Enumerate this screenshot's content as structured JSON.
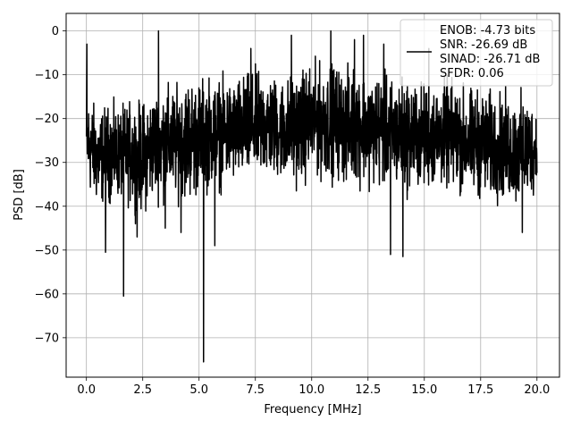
{
  "chart_data": {
    "type": "line",
    "title": "",
    "xlabel": "Frequency [MHz]",
    "ylabel": "PSD [dB]",
    "xlim": [
      -0.9,
      21.0
    ],
    "ylim": [
      -79,
      4
    ],
    "xticks": [
      0.0,
      2.5,
      5.0,
      7.5,
      10.0,
      12.5,
      15.0,
      17.5,
      20.0
    ],
    "xtick_labels": [
      "0.0",
      "2.5",
      "5.0",
      "7.5",
      "10.0",
      "12.5",
      "15.0",
      "17.5",
      "20.0"
    ],
    "yticks": [
      0,
      -10,
      -20,
      -30,
      -40,
      -50,
      -60,
      -70
    ],
    "ytick_labels": [
      "0",
      "−10",
      "−20",
      "−30",
      "−40",
      "−50",
      "−60",
      "−70"
    ],
    "grid": true,
    "legend_position": "top-right",
    "legend_entries": [
      "ENOB: -4.73 bits",
      "SNR: -26.69 dB",
      "SINAD: -26.71 dB",
      "SFDR: 0.06"
    ],
    "series_color": "#000000",
    "series": [
      {
        "name": "",
        "envelope_x": [
          0.0,
          0.5,
          1.0,
          1.5,
          2.0,
          2.5,
          3.0,
          3.5,
          4.0,
          4.5,
          5.0,
          5.5,
          6.0,
          6.5,
          7.0,
          7.5,
          8.0,
          8.5,
          9.0,
          9.5,
          10.0,
          10.5,
          11.0,
          11.5,
          12.0,
          12.5,
          13.0,
          13.5,
          14.0,
          14.5,
          15.0,
          15.5,
          16.0,
          16.5,
          17.0,
          17.5,
          18.0,
          18.5,
          19.0,
          19.5,
          20.0
        ],
        "envelope_upper": [
          -12,
          -16,
          -15,
          -16,
          -14,
          -14,
          -12,
          -10,
          -11,
          -8,
          -9,
          -8,
          -9,
          -9,
          -8,
          -7,
          -7,
          -9,
          -8,
          -7,
          -5,
          -6,
          -5,
          -7,
          -5,
          -8,
          -7,
          -9,
          -8,
          -9,
          -10,
          -10,
          -9,
          -10,
          -11,
          -11,
          -12,
          -12,
          -13,
          -12,
          -16
        ],
        "envelope_lower": [
          -38,
          -42,
          -41,
          -40,
          -42,
          -44,
          -40,
          -41,
          -40,
          -41,
          -40,
          -38,
          -38,
          -37,
          -37,
          -36,
          -36,
          -36,
          -37,
          -37,
          -36,
          -36,
          -36,
          -37,
          -37,
          -37,
          -38,
          -38,
          -39,
          -39,
          -38,
          -38,
          -38,
          -39,
          -40,
          -40,
          -41,
          -41,
          -42,
          -42,
          -38
        ],
        "peaks": [
          {
            "x": 0.02,
            "y": -3
          },
          {
            "x": 3.2,
            "y": 0
          },
          {
            "x": 9.1,
            "y": -1
          },
          {
            "x": 10.85,
            "y": 0
          },
          {
            "x": 11.9,
            "y": -2
          },
          {
            "x": 12.3,
            "y": -1
          },
          {
            "x": 13.2,
            "y": -3
          },
          {
            "x": 7.3,
            "y": -4
          },
          {
            "x": 15.2,
            "y": -4
          }
        ],
        "dips": [
          {
            "x": 1.65,
            "y": -60.5
          },
          {
            "x": 5.2,
            "y": -75.5
          },
          {
            "x": 13.5,
            "y": -51
          },
          {
            "x": 14.05,
            "y": -51.5
          },
          {
            "x": 0.85,
            "y": -50.5
          },
          {
            "x": 2.25,
            "y": -47
          },
          {
            "x": 5.7,
            "y": -49
          },
          {
            "x": 4.2,
            "y": -46
          },
          {
            "x": 3.5,
            "y": -45
          },
          {
            "x": 19.35,
            "y": -46
          }
        ]
      }
    ]
  }
}
